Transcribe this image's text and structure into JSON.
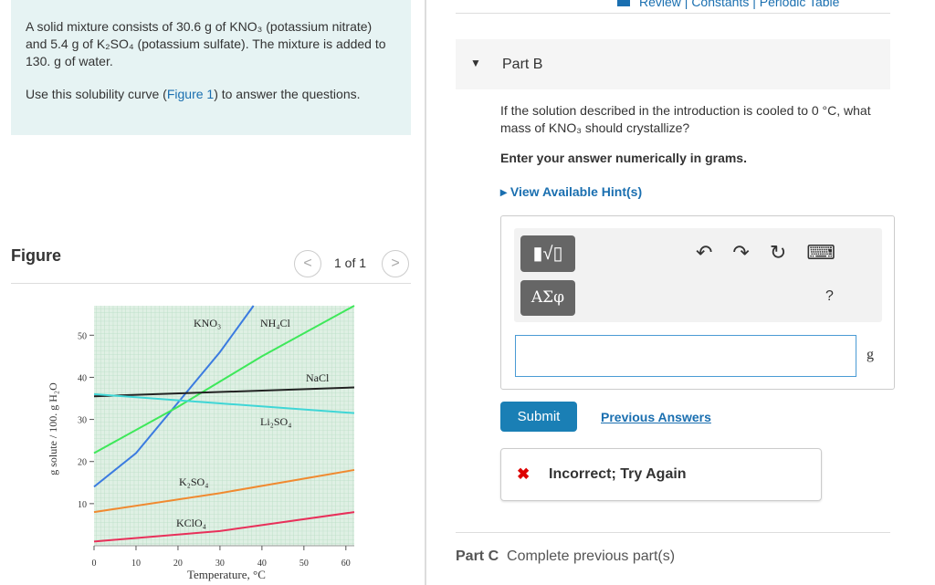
{
  "header": {
    "links": "Review | Constants | Periodic Table"
  },
  "intro": {
    "text": "A solid mixture consists of 30.6 g of KNO₃ (potassium nitrate) and 5.4 g of K₂SO₄ (potassium sulfate). The mixture is added to 130. g of water.",
    "instruction_before": "Use this solubility curve (",
    "instruction_link": "Figure 1",
    "instruction_after": ") to answer the questions."
  },
  "figure": {
    "title": "Figure",
    "pager": "1 of 1",
    "chart_data": {
      "type": "line",
      "xlabel": "Temperature, °C",
      "ylabel": "g solute / 100. g H₂O",
      "xlim": [
        0,
        62
      ],
      "ylim": [
        0,
        57
      ],
      "xticks": [
        0,
        10,
        20,
        30,
        40,
        50,
        60
      ],
      "yticks": [
        10,
        20,
        30,
        40,
        50
      ],
      "series": [
        {
          "name": "KNO₃",
          "color": "#3b7be0",
          "x": [
            0,
            10,
            20,
            30,
            38
          ],
          "values": [
            14,
            22,
            34,
            46,
            57
          ]
        },
        {
          "name": "NH₄Cl",
          "color": "#3ee85a",
          "x": [
            0,
            20,
            40,
            62
          ],
          "values": [
            22,
            33,
            45,
            57
          ]
        },
        {
          "name": "NaCl",
          "color": "#222222",
          "x": [
            0,
            62
          ],
          "values": [
            35.5,
            37.6
          ]
        },
        {
          "name": "Li₂SO₄",
          "color": "#3fd6d6",
          "x": [
            0,
            62
          ],
          "values": [
            36,
            31.5
          ]
        },
        {
          "name": "K₂SO₄",
          "color": "#f08a30",
          "x": [
            0,
            30,
            62
          ],
          "values": [
            8,
            12.5,
            18
          ]
        },
        {
          "name": "KClO₄",
          "color": "#e8305a",
          "x": [
            0,
            30,
            62
          ],
          "values": [
            1,
            3.5,
            8
          ]
        }
      ]
    }
  },
  "part_b": {
    "title": "Part B",
    "question": "If the solution described in the introduction is cooled to 0 °C, what mass of KNO₃ should crystallize?",
    "instruction": "Enter your answer numerically in grams.",
    "hint": "View Available Hint(s)",
    "greek": "ΑΣφ",
    "help": "?",
    "unit": "g",
    "submit": "Submit",
    "previous": "Previous Answers",
    "feedback": "Incorrect; Try Again"
  },
  "part_c": {
    "title": "Part C",
    "status": "Complete previous part(s)"
  }
}
